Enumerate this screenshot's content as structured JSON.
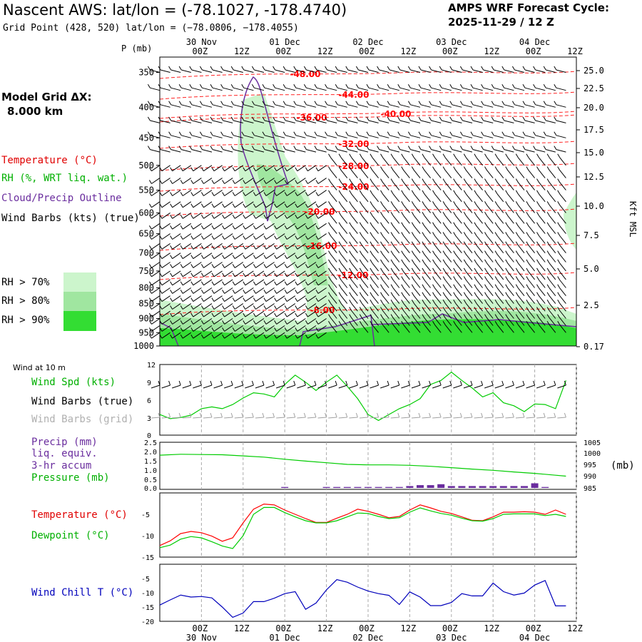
{
  "header": {
    "title": "Nascent AWS:  lat/lon = (-78.1027, -178.4740)",
    "subtitle": "Grid Point (428, 520) lat/lon = (−78.0806, −178.4055)",
    "cycle_label": "AMPS WRF Forecast Cycle:",
    "cycle_value": "2025-11-29 / 12  Z"
  },
  "side": {
    "model_grid_label": "Model Grid ΔX:",
    "model_grid_value": "8.000 km",
    "legend_temperature": "Temperature (°C)",
    "legend_rh": "RH (%, WRT liq. wat.)",
    "legend_cloud": "Cloud/Precip Outline",
    "legend_wind": "Wind Barbs (kts) (true)",
    "rh70": "RH > 70%",
    "rh80": "RH > 80%",
    "rh90": "RH > 90%",
    "wind10m": "Wind at 10 m",
    "wind_spd": "Wind Spd (kts)",
    "wind_barbs_true": "Wind Barbs (true)",
    "wind_barbs_grid": "Wind Barbs (grid)",
    "precip1": "Precip (mm)",
    "precip2": "liq. equiv.",
    "precip3": "3-hr accum",
    "pressure": "Pressure (mb)",
    "pressure_unit": "(mb)",
    "temp_label": "Temperature (°C)",
    "dew_label": "Dewpoint (°C)",
    "windchill_label": "Wind Chill T (°C)",
    "p_axis_label": "P (mb)",
    "kft_label": "Kft MSL"
  },
  "colors": {
    "temperature": "#ff0000",
    "dewpoint": "#00cc00",
    "cloud": "#6a2d9e",
    "windchill": "#0000bb",
    "rh70": "#ccf5cc",
    "rh80": "#a0e6a0",
    "rh90": "#33dd33",
    "grid_barbs": "#a0a0a0"
  },
  "chart_data": [
    {
      "type": "heatmap",
      "name": "time-height cross section",
      "time_ticks": [
        "00Z",
        "12Z",
        "00Z",
        "12Z",
        "00Z",
        "12Z",
        "00Z",
        "12Z",
        "00Z",
        "12Z"
      ],
      "date_ticks": [
        "30 Nov",
        "01 Dec",
        "02 Dec",
        "03 Dec",
        "04 Dec"
      ],
      "pressure_levels": [
        350,
        400,
        450,
        500,
        550,
        600,
        650,
        700,
        750,
        800,
        850,
        900,
        950,
        1000
      ],
      "height_kft_ticks": [
        "25.0",
        "22.5",
        "20.0",
        "17.5",
        "15.0",
        "12.5",
        "10.0",
        "7.5",
        "5.0",
        "2.5",
        "0.17"
      ],
      "temperature_contour_labels": [
        "-48.00",
        "-44.00",
        "-40.00",
        "-36.00",
        "-32.00",
        "-28.00",
        "-24.00",
        "-20.00",
        "-16.00",
        "-12.00",
        "-8.00"
      ]
    },
    {
      "type": "line",
      "name": "10 m wind speed",
      "y_ticks": [
        "12",
        "9",
        "6",
        "3",
        "0"
      ],
      "ylim": [
        0,
        12
      ],
      "x_hours": [
        0,
        3,
        6,
        9,
        12,
        15,
        18,
        21,
        24,
        27,
        30,
        33,
        36,
        39,
        42,
        45,
        48,
        51,
        54,
        57,
        60,
        63,
        66,
        69,
        72,
        75,
        78,
        81,
        84,
        87,
        90,
        93,
        96,
        99,
        102,
        105,
        108,
        111,
        114,
        117
      ],
      "values": [
        3.5,
        2.8,
        3.0,
        3.4,
        4.5,
        4.8,
        4.5,
        5.2,
        6.3,
        7.2,
        7.0,
        6.5,
        8.6,
        10.2,
        9.0,
        7.6,
        9.0,
        10.2,
        8.3,
        6.2,
        3.5,
        2.5,
        3.5,
        4.5,
        5.2,
        6.2,
        8.6,
        9.3,
        10.7,
        9.3,
        8.0,
        6.5,
        7.2,
        5.5,
        5.0,
        4.0,
        5.3,
        5.2,
        4.5,
        9.3
      ]
    },
    {
      "type": "line",
      "name": "surface pressure and precip",
      "precip_y_ticks": [
        "2.5",
        "2.0",
        "1.5",
        "1.0",
        "0.5",
        "0.0"
      ],
      "pressure_y_ticks": [
        "1005",
        "1000",
        "995",
        "990",
        "985"
      ],
      "pressure_ylim": [
        985,
        1005
      ],
      "x_hours": [
        0,
        6,
        12,
        18,
        24,
        30,
        36,
        42,
        48,
        54,
        60,
        66,
        72,
        78,
        84,
        90,
        96,
        102,
        108,
        114,
        117
      ],
      "pressure": [
        999.5,
        999.9,
        999.8,
        999.7,
        999.2,
        998.7,
        997.8,
        997.0,
        996.3,
        995.6,
        995.4,
        995.4,
        995.2,
        994.8,
        994.2,
        993.6,
        993.1,
        992.4,
        991.8,
        991.0,
        990.6
      ],
      "precip_x_hours": [
        36,
        48,
        51,
        54,
        57,
        60,
        63,
        66,
        69,
        72,
        75,
        78,
        81,
        84,
        87,
        90,
        93,
        96,
        99,
        102,
        105,
        108,
        111
      ],
      "precip": [
        0.05,
        0.05,
        0.05,
        0.05,
        0.05,
        0.05,
        0.05,
        0.05,
        0.05,
        0.1,
        0.15,
        0.15,
        0.2,
        0.1,
        0.1,
        0.1,
        0.1,
        0.1,
        0.1,
        0.1,
        0.1,
        0.25,
        0.05
      ]
    },
    {
      "type": "line",
      "name": "temperature and dewpoint",
      "y_ticks": [
        "-5",
        "-10",
        "-15"
      ],
      "ylim": [
        -15,
        0
      ],
      "x_hours": [
        0,
        3,
        6,
        9,
        12,
        15,
        18,
        21,
        24,
        27,
        30,
        33,
        36,
        39,
        42,
        45,
        48,
        51,
        54,
        57,
        60,
        63,
        66,
        69,
        72,
        75,
        78,
        81,
        84,
        87,
        90,
        93,
        96,
        99,
        102,
        105,
        108,
        111,
        114,
        117
      ],
      "series": [
        {
          "name": "Temperature",
          "values": [
            -12.3,
            -11.2,
            -9.5,
            -9.0,
            -9.3,
            -10.1,
            -11.3,
            -10.5,
            -7.0,
            -3.8,
            -2.6,
            -2.8,
            -4.0,
            -5.0,
            -6.0,
            -6.9,
            -6.9,
            -5.9,
            -5.0,
            -3.8,
            -4.3,
            -5.0,
            -5.8,
            -5.5,
            -4.0,
            -2.8,
            -3.5,
            -4.3,
            -4.8,
            -5.6,
            -6.4,
            -6.5,
            -5.6,
            -4.5,
            -4.5,
            -4.4,
            -4.5,
            -5.0,
            -4.0,
            -5.0
          ]
        },
        {
          "name": "Dewpoint",
          "values": [
            -12.8,
            -12.2,
            -10.8,
            -10.2,
            -10.5,
            -11.4,
            -12.4,
            -13.0,
            -10.0,
            -5.0,
            -3.4,
            -3.4,
            -4.6,
            -5.6,
            -6.5,
            -7.0,
            -7.0,
            -6.5,
            -5.6,
            -4.7,
            -4.8,
            -5.5,
            -6.0,
            -5.8,
            -4.5,
            -3.5,
            -4.2,
            -4.8,
            -5.2,
            -5.9,
            -6.5,
            -6.6,
            -6.0,
            -5.0,
            -4.9,
            -4.9,
            -4.9,
            -5.3,
            -5.0,
            -5.5
          ]
        }
      ]
    },
    {
      "type": "line",
      "name": "wind chill",
      "y_ticks": [
        "-5",
        "-10",
        "-15",
        "-20"
      ],
      "ylim": [
        -20,
        0
      ],
      "x_hours": [
        0,
        3,
        6,
        9,
        12,
        15,
        18,
        21,
        24,
        27,
        30,
        33,
        36,
        39,
        42,
        45,
        48,
        51,
        54,
        57,
        60,
        63,
        66,
        69,
        72,
        75,
        78,
        81,
        84,
        87,
        90,
        93,
        96,
        99,
        102,
        105,
        108,
        111,
        114,
        117
      ],
      "series": [
        {
          "name": "Wind Chill",
          "values": [
            -14.3,
            -12.5,
            -10.8,
            -11.5,
            -11.3,
            -11.8,
            -15.0,
            -18.6,
            -17.1,
            -13.1,
            -13.1,
            -11.9,
            -10.3,
            -9.6,
            -15.8,
            -13.6,
            -9.0,
            -5.4,
            -6.3,
            -8.0,
            -9.4,
            -10.3,
            -10.9,
            -14.1,
            -9.7,
            -11.5,
            -14.5,
            -14.5,
            -13.4,
            -10.3,
            -11.1,
            -11.1,
            -6.6,
            -9.6,
            -10.8,
            -10.1,
            -7.3,
            -5.7,
            -14.6,
            -14.6
          ]
        }
      ]
    }
  ]
}
